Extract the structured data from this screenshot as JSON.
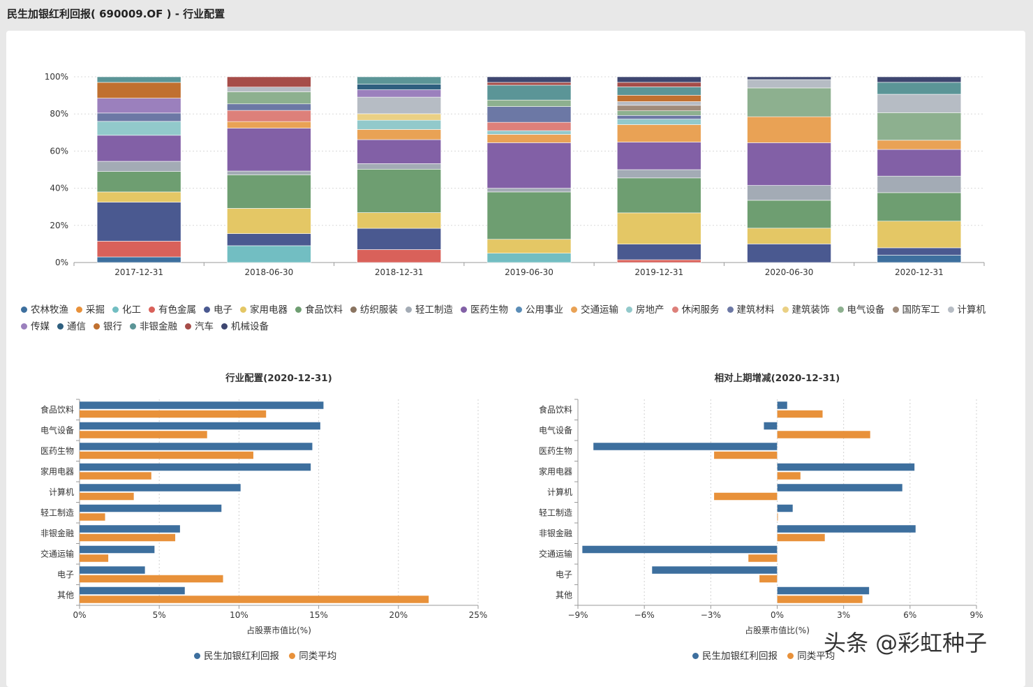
{
  "page": {
    "title": "民生加银红利回报( 690009.OF ) - 行业配置"
  },
  "watermark": "头条 @彩虹种子",
  "colors": {
    "农林牧渔": "#3d6f9e",
    "采掘": "#e8913a",
    "化工": "#72bec2",
    "有色金属": "#d9615a",
    "电子": "#4a5990",
    "家用电器": "#e4c765",
    "食品饮料": "#6e9e71",
    "纺织服装": "#8a7460",
    "轻工制造": "#a3abb5",
    "医药生物": "#8260a6",
    "公用事业": "#5b8db7",
    "交通运输": "#e9a255",
    "房地产": "#92c9cb",
    "休闲服务": "#dd807a",
    "建筑材料": "#6c78a5",
    "建筑装饰": "#ead084",
    "电气设备": "#8db08f",
    "国防军工": "#a08b7a",
    "计算机": "#b6bcc4",
    "传媒": "#9b80bd",
    "通信": "#2e5f7f",
    "银行": "#c07030",
    "非银金融": "#5b9597",
    "汽车": "#a64d49",
    "机械设备": "#3e4670",
    "fund": "#3d6f9e",
    "peer": "#e8913a"
  },
  "legend_top": [
    "农林牧渔",
    "采掘",
    "化工",
    "有色金属",
    "电子",
    "家用电器",
    "食品饮料",
    "纺织服装",
    "轻工制造",
    "医药生物",
    "公用事业",
    "交通运输",
    "房地产",
    "休闲服务",
    "建筑材料",
    "建筑装饰",
    "电气设备",
    "国防军工",
    "计算机",
    "传媒",
    "通信",
    "银行",
    "非银金融",
    "汽车",
    "机械设备"
  ],
  "chart_data": [
    {
      "type": "bar",
      "stacked": true,
      "percent": true,
      "categories": [
        "2017-12-31",
        "2018-06-30",
        "2018-12-31",
        "2019-06-30",
        "2019-12-31",
        "2020-06-30",
        "2020-12-31"
      ],
      "y_ticks": [
        "0%",
        "20%",
        "40%",
        "60%",
        "80%",
        "100%"
      ],
      "ylim": [
        0,
        100
      ],
      "legend_position": "bottom",
      "series": [
        {
          "name": "农林牧渔",
          "values": [
            3,
            0,
            0,
            0,
            0,
            0,
            4
          ]
        },
        {
          "name": "采掘",
          "values": [
            0,
            0,
            0,
            0,
            0,
            0,
            0
          ]
        },
        {
          "name": "化工",
          "values": [
            0,
            9,
            0,
            5,
            0,
            0,
            0
          ]
        },
        {
          "name": "有色金属",
          "values": [
            8.5,
            0,
            7,
            0,
            1.5,
            0,
            0
          ]
        },
        {
          "name": "电子",
          "values": [
            21,
            6.5,
            11.5,
            0,
            8.5,
            10,
            4
          ]
        },
        {
          "name": "家用电器",
          "values": [
            5.5,
            13.5,
            8.5,
            7.5,
            17,
            8.5,
            14.5
          ]
        },
        {
          "name": "食品饮料",
          "values": [
            11,
            18,
            23.5,
            25.5,
            19,
            15,
            15.5
          ]
        },
        {
          "name": "纺织服装",
          "values": [
            0,
            0,
            0,
            0,
            0,
            0,
            0
          ]
        },
        {
          "name": "轻工制造",
          "values": [
            5.5,
            2,
            3,
            2,
            4.5,
            8,
            9
          ]
        },
        {
          "name": "医药生物",
          "values": [
            14,
            23,
            13,
            24.5,
            15,
            23,
            14.5
          ]
        },
        {
          "name": "公用事业",
          "values": [
            0,
            0,
            0,
            0,
            0,
            0,
            0
          ]
        },
        {
          "name": "交通运输",
          "values": [
            0,
            3.5,
            5.5,
            4.5,
            9.5,
            14,
            5
          ]
        },
        {
          "name": "房地产",
          "values": [
            7.5,
            0,
            5,
            2,
            3,
            0,
            0
          ]
        },
        {
          "name": "休闲服务",
          "values": [
            0,
            6,
            0,
            4.5,
            0,
            0,
            0
          ]
        },
        {
          "name": "建筑材料",
          "values": [
            4.5,
            3.5,
            0,
            8.5,
            2,
            0,
            0
          ]
        },
        {
          "name": "建筑装饰",
          "values": [
            0,
            0,
            3.5,
            0,
            0,
            0,
            0
          ]
        },
        {
          "name": "电气设备",
          "values": [
            0,
            6.5,
            0,
            3.5,
            2.5,
            15.5,
            15
          ]
        },
        {
          "name": "国防军工",
          "values": [
            0,
            0,
            0,
            0,
            3,
            0,
            0
          ]
        },
        {
          "name": "计算机",
          "values": [
            0,
            2.5,
            9,
            0,
            2,
            4.5,
            10
          ]
        },
        {
          "name": "传媒",
          "values": [
            8,
            0,
            4,
            0,
            0,
            0,
            0
          ]
        },
        {
          "name": "通信",
          "values": [
            0,
            0,
            3,
            0,
            0,
            0,
            0
          ]
        },
        {
          "name": "银行",
          "values": [
            8.5,
            0,
            0,
            0,
            3.5,
            0,
            0
          ]
        },
        {
          "name": "非银金融",
          "values": [
            3,
            0,
            4,
            8,
            4.5,
            0,
            6.5
          ]
        },
        {
          "name": "汽车",
          "values": [
            0,
            5.5,
            0,
            1.5,
            2.5,
            0,
            0
          ]
        },
        {
          "name": "机械设备",
          "values": [
            0,
            0,
            0,
            3,
            3,
            1.5,
            3
          ]
        }
      ]
    },
    {
      "type": "bar",
      "orientation": "horizontal",
      "title": "行业配置(2020-12-31)",
      "xlabel": "占股票市值比(%)",
      "xlim": [
        0,
        25
      ],
      "x_ticks": [
        "0%",
        "5%",
        "10%",
        "15%",
        "20%",
        "25%"
      ],
      "categories": [
        "食品饮料",
        "电气设备",
        "医药生物",
        "家用电器",
        "计算机",
        "轻工制造",
        "非银金融",
        "交通运输",
        "电子",
        "其他"
      ],
      "series": [
        {
          "name": "民生加银红利回报",
          "values": [
            15.3,
            15.1,
            14.6,
            14.5,
            10.1,
            8.9,
            6.3,
            4.7,
            4.1,
            6.6
          ]
        },
        {
          "name": "同类平均",
          "values": [
            11.7,
            8,
            10.9,
            4.5,
            3.4,
            1.6,
            6,
            1.8,
            9,
            21.9
          ]
        }
      ],
      "legend_position": "bottom"
    },
    {
      "type": "bar",
      "orientation": "horizontal",
      "title": "相对上期增减(2020-12-31)",
      "xlabel": "占股票市值比(%)",
      "xlim": [
        -9,
        9
      ],
      "x_ticks": [
        "−9%",
        "−6%",
        "−3%",
        "0%",
        "3%",
        "6%",
        "9%"
      ],
      "categories": [
        "食品饮料",
        "电气设备",
        "医药生物",
        "家用电器",
        "计算机",
        "轻工制造",
        "非银金融",
        "交通运输",
        "电子",
        "其他"
      ],
      "series": [
        {
          "name": "民生加银红利回报",
          "values": [
            0.45,
            -0.6,
            -8.3,
            6.2,
            5.65,
            0.7,
            6.25,
            -8.8,
            -5.65,
            4.15
          ]
        },
        {
          "name": "同类平均",
          "values": [
            2.05,
            4.2,
            -2.85,
            1.05,
            -2.85,
            0.03,
            2.15,
            -1.3,
            -0.8,
            3.85
          ]
        }
      ],
      "legend_position": "bottom"
    }
  ]
}
